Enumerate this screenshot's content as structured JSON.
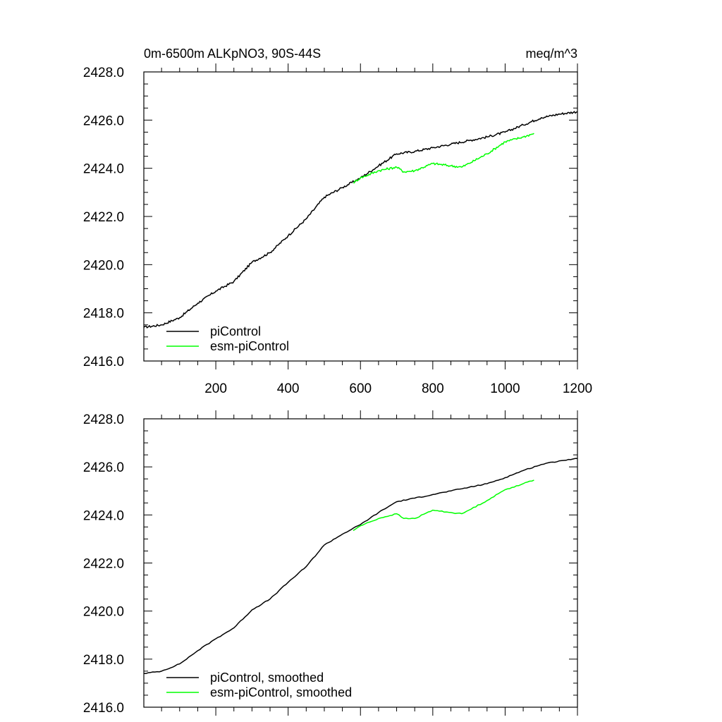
{
  "chart_data": [
    {
      "type": "line",
      "title_left": "0m-6500m ALKpNO3, 90S-44S",
      "title_right": "meq/m^3",
      "xlim": [
        1,
        1200
      ],
      "ylim": [
        2416.0,
        2428.0
      ],
      "yticks": [
        "2416.0",
        "2418.0",
        "2420.0",
        "2422.0",
        "2424.0",
        "2426.0",
        "2428.0"
      ],
      "xticks": [
        "200",
        "400",
        "600",
        "800",
        "1000",
        "1200"
      ],
      "show_xtick_labels": true,
      "legend_position": "bottom-left",
      "series": [
        {
          "name": "piControl",
          "color": "#000000",
          "x": [
            1,
            50,
            100,
            150,
            200,
            250,
            300,
            350,
            400,
            450,
            500,
            550,
            600,
            650,
            700,
            750,
            800,
            850,
            900,
            950,
            1000,
            1050,
            1100,
            1150,
            1200
          ],
          "y": [
            2417.4,
            2417.5,
            2417.8,
            2418.4,
            2418.9,
            2419.3,
            2420.1,
            2420.5,
            2421.2,
            2421.9,
            2422.8,
            2423.2,
            2423.6,
            2424.1,
            2424.6,
            2424.7,
            2424.85,
            2425.0,
            2425.15,
            2425.3,
            2425.5,
            2425.8,
            2426.1,
            2426.25,
            2426.35
          ]
        },
        {
          "name": "esm-piControl",
          "color": "#00ff00",
          "x": [
            580,
            600,
            650,
            700,
            720,
            750,
            800,
            850,
            880,
            900,
            950,
            1000,
            1050,
            1080
          ],
          "y": [
            2423.4,
            2423.6,
            2423.9,
            2424.05,
            2423.85,
            2423.9,
            2424.2,
            2424.1,
            2424.05,
            2424.2,
            2424.6,
            2425.1,
            2425.3,
            2425.45
          ]
        }
      ]
    },
    {
      "type": "line",
      "xlim": [
        1,
        1200
      ],
      "ylim": [
        2416.0,
        2428.0
      ],
      "yticks": [
        "2416.0",
        "2418.0",
        "2420.0",
        "2422.0",
        "2424.0",
        "2426.0",
        "2428.0"
      ],
      "xticks": [
        "200",
        "400",
        "600",
        "800",
        "1000",
        "1200"
      ],
      "show_xtick_labels": false,
      "legend_position": "bottom-left",
      "series": [
        {
          "name": "piControl, smoothed",
          "color": "#000000",
          "x": [
            1,
            50,
            100,
            150,
            200,
            250,
            300,
            350,
            400,
            450,
            500,
            550,
            600,
            650,
            700,
            750,
            800,
            850,
            900,
            950,
            1000,
            1050,
            1100,
            1150,
            1200
          ],
          "y": [
            2417.4,
            2417.5,
            2417.8,
            2418.35,
            2418.85,
            2419.3,
            2420.05,
            2420.5,
            2421.2,
            2421.85,
            2422.75,
            2423.2,
            2423.6,
            2424.1,
            2424.55,
            2424.7,
            2424.85,
            2425.0,
            2425.15,
            2425.3,
            2425.55,
            2425.85,
            2426.1,
            2426.25,
            2426.35
          ]
        },
        {
          "name": "esm-piControl, smoothed",
          "color": "#00ff00",
          "x": [
            580,
            600,
            650,
            700,
            720,
            750,
            800,
            850,
            880,
            900,
            950,
            1000,
            1050,
            1080
          ],
          "y": [
            2423.35,
            2423.55,
            2423.85,
            2424.05,
            2423.85,
            2423.85,
            2424.2,
            2424.1,
            2424.05,
            2424.2,
            2424.6,
            2425.05,
            2425.3,
            2425.45
          ]
        }
      ]
    }
  ]
}
